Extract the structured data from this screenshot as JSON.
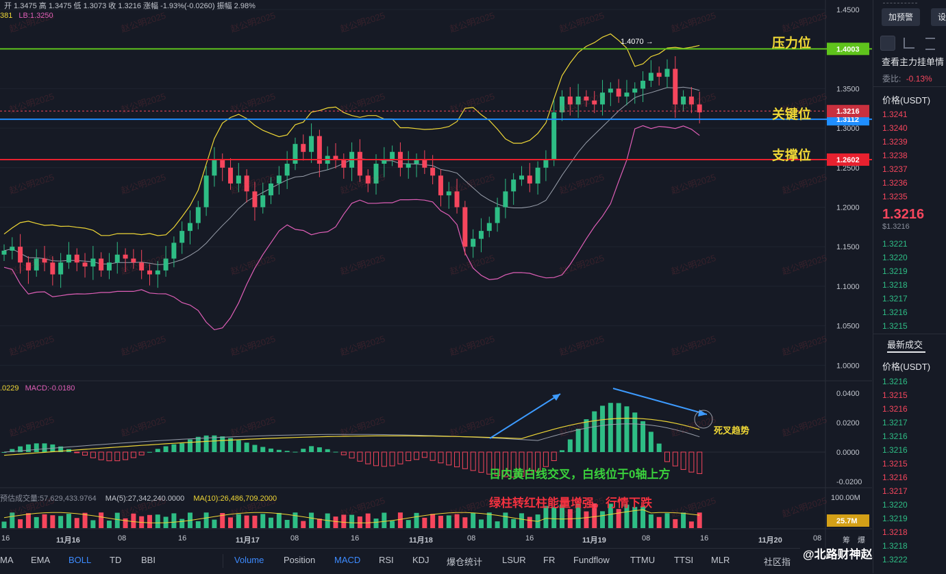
{
  "header": {
    "ohlc_text": "开 1.3475  高 1.3475  低 1.3073  收 1.3216  涨幅 -1.93%(-0.0260)  振幅 2.98%",
    "boll_ub": "381",
    "boll_lb": "LB:1.3250"
  },
  "macd_header": {
    "dif": ".0229",
    "macd": "MACD:-0.0180"
  },
  "volume_header": {
    "est": "预估成交量:57,629,433.9764",
    "ma5": "MA(5):27,342,240.0000",
    "ma10": "MA(10):26,486,709.2000"
  },
  "price_axis": [
    "1.4500",
    "1.4000",
    "1.3500",
    "1.3000",
    "1.2500",
    "1.2000",
    "1.1500",
    "1.1000",
    "1.0500",
    "1.0000"
  ],
  "macd_axis": [
    "0.0400",
    "0.0200",
    "0.0000",
    "-0.0200"
  ],
  "volume_axis": "100.00M",
  "price_tags": {
    "resistance": "1.4003",
    "current": "1.3216",
    "key": "1.3112",
    "support": "1.2602",
    "volume": "25.7M"
  },
  "peak_label": "1.4070 →",
  "annotations": {
    "resistance": "压力位",
    "key": "关键位",
    "support": "支撑位",
    "death_cross": "死叉趋势",
    "cross_text": "日内黄白线交叉，白线位于0轴上方",
    "energy_text": "绿柱转红柱能量增强，行情下跌"
  },
  "time_axis": [
    "16",
    "11月16",
    "08",
    "16",
    "11月17",
    "08",
    "16",
    "11月18",
    "08",
    "16",
    "11月19",
    "08",
    "16",
    "11月20",
    "08"
  ],
  "time_axis_extra": [
    "筹",
    "爆"
  ],
  "tabs": [
    "MA",
    "EMA",
    "BOLL",
    "TD",
    "BBI",
    "Volume",
    "Position",
    "MACD",
    "RSI",
    "KDJ",
    "爆仓统计",
    "LSUR",
    "FR",
    "Fundflow",
    "TTMU",
    "TTSI",
    "MLR",
    "社区指"
  ],
  "active_tabs": [
    "BOLL",
    "Volume",
    "MACD"
  ],
  "watermark": "赵公明2025",
  "signature": "@北路财神赵公明",
  "colors": {
    "up": "#2ebd85",
    "down": "#f6465d",
    "resistance": "#5fc31c",
    "key": "#1f8eff",
    "support": "#e8212f",
    "yellow": "#f0d836"
  },
  "orderbook": {
    "buttons": [
      "加预警",
      "设"
    ],
    "title": "查看主力挂单情",
    "ratio_label": "委比:",
    "ratio_value": "-0.13%",
    "price_header": "价格(USDT)",
    "asks": [
      "1.3241",
      "1.3240",
      "1.3239",
      "1.3238",
      "1.3237",
      "1.3236",
      "1.3235"
    ],
    "last_price": "1.3216",
    "last_price_usd": "$1.3216",
    "bids": [
      "1.3221",
      "1.3220",
      "1.3219",
      "1.3218",
      "1.3217",
      "1.3216",
      "1.3215"
    ],
    "trades_title": "最新成交",
    "trades_header": "价格(USDT)",
    "trades": [
      {
        "p": "1.3216",
        "s": "up"
      },
      {
        "p": "1.3215",
        "s": "down"
      },
      {
        "p": "1.3216",
        "s": "down"
      },
      {
        "p": "1.3217",
        "s": "up"
      },
      {
        "p": "1.3216",
        "s": "up"
      },
      {
        "p": "1.3216",
        "s": "up"
      },
      {
        "p": "1.3215",
        "s": "down"
      },
      {
        "p": "1.3216",
        "s": "down"
      },
      {
        "p": "1.3217",
        "s": "down"
      },
      {
        "p": "1.3220",
        "s": "up"
      },
      {
        "p": "1.3219",
        "s": "up"
      },
      {
        "p": "1.3218",
        "s": "down"
      },
      {
        "p": "1.3218",
        "s": "up"
      },
      {
        "p": "1.3222",
        "s": "up"
      }
    ]
  },
  "chart_data": {
    "type": "candlestick",
    "price_range": [
      0.98,
      1.46
    ],
    "levels": {
      "resistance": 1.4003,
      "key": 1.3112,
      "support": 1.2602,
      "current": 1.3216,
      "peak": 1.407
    },
    "candles_close_estimates": [
      1.145,
      1.15,
      1.13,
      1.12,
      1.135,
      1.13,
      1.115,
      1.13,
      1.14,
      1.13,
      1.125,
      1.135,
      1.12,
      1.13,
      1.14,
      1.135,
      1.13,
      1.12,
      1.115,
      1.12,
      1.135,
      1.155,
      1.17,
      1.18,
      1.2,
      1.24,
      1.26,
      1.25,
      1.23,
      1.24,
      1.22,
      1.2,
      1.215,
      1.23,
      1.24,
      1.255,
      1.28,
      1.27,
      1.29,
      1.255,
      1.265,
      1.26,
      1.25,
      1.27,
      1.24,
      1.23,
      1.255,
      1.26,
      1.27,
      1.25,
      1.255,
      1.26,
      1.25,
      1.24,
      1.215,
      1.22,
      1.2,
      1.15,
      1.16,
      1.17,
      1.18,
      1.2,
      1.22,
      1.235,
      1.24,
      1.23,
      1.25,
      1.26,
      1.32,
      1.34,
      1.33,
      1.34,
      1.335,
      1.33,
      1.345,
      1.35,
      1.34,
      1.345,
      1.35,
      1.36,
      1.37,
      1.365,
      1.375,
      1.33,
      1.34,
      1.33,
      1.32
    ]
  }
}
